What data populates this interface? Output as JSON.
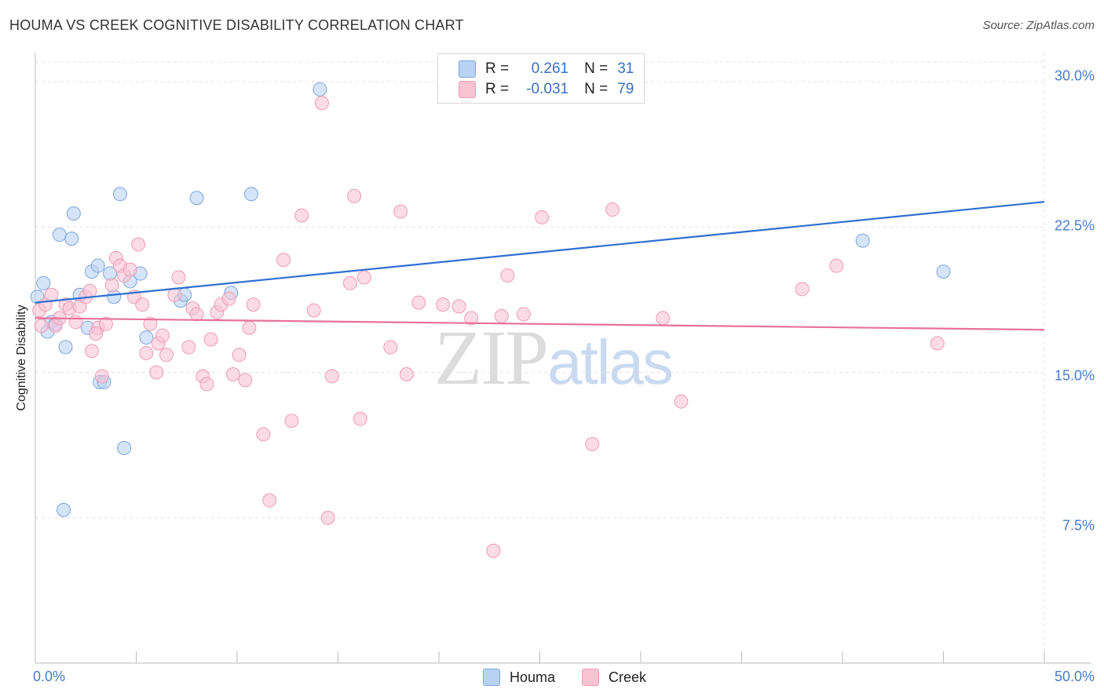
{
  "header": {
    "title": "HOUMA VS CREEK COGNITIVE DISABILITY CORRELATION CHART",
    "source": "Source: ZipAtlas.com"
  },
  "watermark": {
    "zip": "ZIP",
    "atlas": "atlas"
  },
  "legend": {
    "houma": {
      "r_label": "R =",
      "r_value": "0.261",
      "n_label": "N =",
      "n_value": "31"
    },
    "creek": {
      "r_label": "R =",
      "r_value": "-0.031",
      "n_label": "N =",
      "n_value": "79"
    }
  },
  "colors": {
    "houma_fill": "#b9d2f3",
    "houma_stroke": "#7ea6dc",
    "houma_line": "#2f6fd0",
    "creek_fill": "#f8c3d3",
    "creek_stroke": "#ee9db6",
    "creek_line": "#e8709a",
    "grid": "#e0e0e0",
    "tick_label": "#4a7cc9"
  },
  "chart_data": {
    "type": "scatter",
    "title": "HOUMA VS CREEK COGNITIVE DISABILITY CORRELATION CHART",
    "xlabel": "",
    "ylabel": "Cognitive Disability",
    "xlim": [
      0,
      50
    ],
    "ylim": [
      0,
      31.5
    ],
    "x_tick_labels": [
      "0.0%",
      "50.0%"
    ],
    "y_ticks": [
      7.5,
      15.0,
      22.5,
      30.0
    ],
    "y_tick_labels": [
      "7.5%",
      "15.0%",
      "22.5%",
      "30.0%"
    ],
    "grid": true,
    "legend_position": "top-center",
    "series": [
      {
        "name": "Houma",
        "trend": {
          "x": [
            0,
            50
          ],
          "y": [
            18.6,
            23.8
          ]
        },
        "points": [
          {
            "x": 0.1,
            "y": 18.9
          },
          {
            "x": 0.4,
            "y": 19.6
          },
          {
            "x": 0.6,
            "y": 17.1
          },
          {
            "x": 0.8,
            "y": 17.6
          },
          {
            "x": 1.0,
            "y": 17.5
          },
          {
            "x": 1.2,
            "y": 22.1
          },
          {
            "x": 1.5,
            "y": 16.3
          },
          {
            "x": 1.8,
            "y": 21.9
          },
          {
            "x": 1.9,
            "y": 23.2
          },
          {
            "x": 2.2,
            "y": 19.0
          },
          {
            "x": 2.6,
            "y": 17.3
          },
          {
            "x": 2.8,
            "y": 20.2
          },
          {
            "x": 3.1,
            "y": 20.5
          },
          {
            "x": 3.2,
            "y": 14.5
          },
          {
            "x": 3.4,
            "y": 14.5
          },
          {
            "x": 3.7,
            "y": 20.1
          },
          {
            "x": 3.9,
            "y": 18.9
          },
          {
            "x": 4.2,
            "y": 24.2
          },
          {
            "x": 4.4,
            "y": 11.1
          },
          {
            "x": 4.7,
            "y": 19.7
          },
          {
            "x": 5.2,
            "y": 20.1
          },
          {
            "x": 5.5,
            "y": 16.8
          },
          {
            "x": 7.2,
            "y": 18.7
          },
          {
            "x": 7.4,
            "y": 19.0
          },
          {
            "x": 8.0,
            "y": 24.0
          },
          {
            "x": 9.7,
            "y": 19.1
          },
          {
            "x": 10.7,
            "y": 24.2
          },
          {
            "x": 14.1,
            "y": 29.6
          },
          {
            "x": 41.0,
            "y": 21.8
          },
          {
            "x": 45.0,
            "y": 20.2
          },
          {
            "x": 1.4,
            "y": 7.9
          }
        ]
      },
      {
        "name": "Creek",
        "trend": {
          "x": [
            0,
            50
          ],
          "y": [
            17.8,
            17.2
          ]
        },
        "points": [
          {
            "x": 0.2,
            "y": 18.2
          },
          {
            "x": 0.3,
            "y": 17.4
          },
          {
            "x": 0.5,
            "y": 18.5
          },
          {
            "x": 0.8,
            "y": 19.0
          },
          {
            "x": 1.0,
            "y": 17.4
          },
          {
            "x": 1.2,
            "y": 17.8
          },
          {
            "x": 1.5,
            "y": 18.5
          },
          {
            "x": 1.7,
            "y": 18.3
          },
          {
            "x": 2.0,
            "y": 17.6
          },
          {
            "x": 2.2,
            "y": 18.4
          },
          {
            "x": 2.5,
            "y": 18.9
          },
          {
            "x": 2.7,
            "y": 19.2
          },
          {
            "x": 2.8,
            "y": 16.1
          },
          {
            "x": 3.1,
            "y": 17.3
          },
          {
            "x": 3.3,
            "y": 14.8
          },
          {
            "x": 3.5,
            "y": 17.5
          },
          {
            "x": 3.8,
            "y": 19.5
          },
          {
            "x": 4.0,
            "y": 20.9
          },
          {
            "x": 4.2,
            "y": 20.5
          },
          {
            "x": 4.4,
            "y": 20.0
          },
          {
            "x": 4.7,
            "y": 20.3
          },
          {
            "x": 4.9,
            "y": 18.9
          },
          {
            "x": 5.1,
            "y": 21.6
          },
          {
            "x": 5.3,
            "y": 18.5
          },
          {
            "x": 5.5,
            "y": 16.0
          },
          {
            "x": 5.7,
            "y": 17.5
          },
          {
            "x": 6.0,
            "y": 15.0
          },
          {
            "x": 6.1,
            "y": 16.5
          },
          {
            "x": 6.3,
            "y": 16.9
          },
          {
            "x": 6.5,
            "y": 15.9
          },
          {
            "x": 6.9,
            "y": 19.0
          },
          {
            "x": 7.1,
            "y": 19.9
          },
          {
            "x": 7.6,
            "y": 16.3
          },
          {
            "x": 7.8,
            "y": 18.3
          },
          {
            "x": 8.0,
            "y": 18.0
          },
          {
            "x": 8.3,
            "y": 14.8
          },
          {
            "x": 8.5,
            "y": 14.4
          },
          {
            "x": 8.7,
            "y": 16.7
          },
          {
            "x": 9.0,
            "y": 18.1
          },
          {
            "x": 9.2,
            "y": 18.5
          },
          {
            "x": 9.6,
            "y": 18.8
          },
          {
            "x": 9.8,
            "y": 14.9
          },
          {
            "x": 10.1,
            "y": 15.9
          },
          {
            "x": 10.4,
            "y": 14.6
          },
          {
            "x": 10.6,
            "y": 17.3
          },
          {
            "x": 10.8,
            "y": 18.5
          },
          {
            "x": 11.3,
            "y": 11.8
          },
          {
            "x": 11.6,
            "y": 8.4
          },
          {
            "x": 12.3,
            "y": 20.8
          },
          {
            "x": 12.7,
            "y": 12.5
          },
          {
            "x": 13.2,
            "y": 23.1
          },
          {
            "x": 13.8,
            "y": 18.2
          },
          {
            "x": 14.2,
            "y": 28.9
          },
          {
            "x": 14.5,
            "y": 7.5
          },
          {
            "x": 14.7,
            "y": 14.8
          },
          {
            "x": 15.6,
            "y": 19.6
          },
          {
            "x": 15.8,
            "y": 24.1
          },
          {
            "x": 16.1,
            "y": 12.6
          },
          {
            "x": 16.3,
            "y": 19.9
          },
          {
            "x": 17.6,
            "y": 16.3
          },
          {
            "x": 18.1,
            "y": 23.3
          },
          {
            "x": 18.4,
            "y": 14.9
          },
          {
            "x": 19.0,
            "y": 18.6
          },
          {
            "x": 20.2,
            "y": 18.5
          },
          {
            "x": 21.0,
            "y": 18.4
          },
          {
            "x": 21.6,
            "y": 17.8
          },
          {
            "x": 22.7,
            "y": 5.8
          },
          {
            "x": 23.1,
            "y": 17.9
          },
          {
            "x": 23.4,
            "y": 20.0
          },
          {
            "x": 24.2,
            "y": 18.0
          },
          {
            "x": 25.1,
            "y": 23.0
          },
          {
            "x": 27.6,
            "y": 11.3
          },
          {
            "x": 28.6,
            "y": 23.4
          },
          {
            "x": 31.1,
            "y": 17.8
          },
          {
            "x": 32.0,
            "y": 13.5
          },
          {
            "x": 38.0,
            "y": 19.3
          },
          {
            "x": 39.7,
            "y": 20.5
          },
          {
            "x": 44.7,
            "y": 16.5
          },
          {
            "x": 3.0,
            "y": 17.0
          }
        ]
      }
    ]
  }
}
